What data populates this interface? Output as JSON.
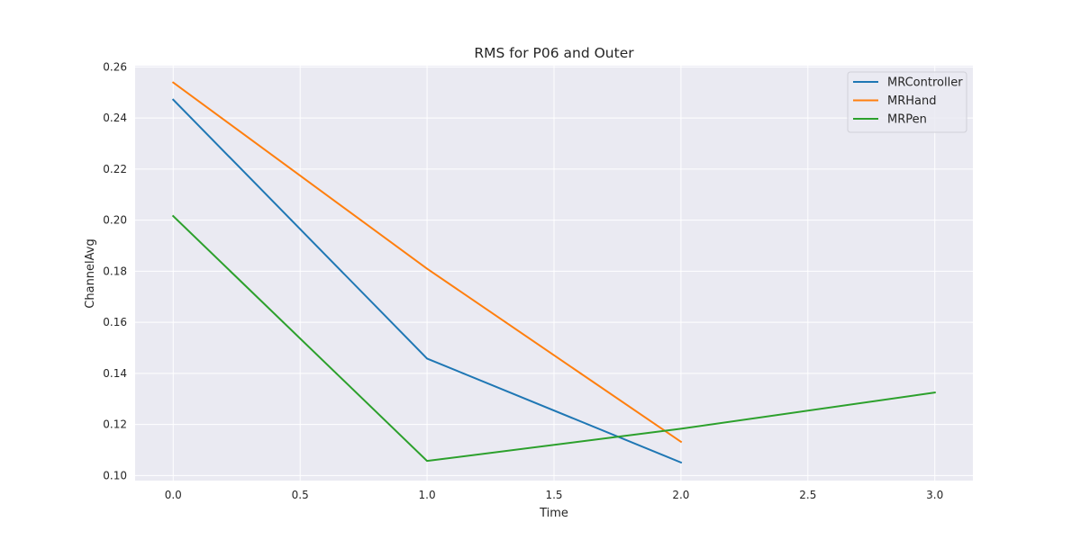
{
  "chart_data": {
    "type": "line",
    "title": "RMS for P06 and Outer",
    "xlabel": "Time",
    "ylabel": "ChannelAvg",
    "xlim": [
      -0.15,
      3.15
    ],
    "ylim": [
      0.098,
      0.2605
    ],
    "xticks": [
      0.0,
      0.5,
      1.0,
      1.5,
      2.0,
      2.5,
      3.0
    ],
    "xtick_labels": [
      "0.0",
      "0.5",
      "1.0",
      "1.5",
      "2.0",
      "2.5",
      "3.0"
    ],
    "yticks": [
      0.1,
      0.12,
      0.14,
      0.16,
      0.18,
      0.2,
      0.22,
      0.24,
      0.26
    ],
    "ytick_labels": [
      "0.10",
      "0.12",
      "0.14",
      "0.16",
      "0.18",
      "0.20",
      "0.22",
      "0.24",
      "0.26"
    ],
    "grid": true,
    "legend_position": "top-right",
    "background": "#eaeaf2",
    "grid_color": "#ffffff",
    "series": [
      {
        "name": "MRController",
        "color": "#1f77b4",
        "x": [
          0,
          1,
          2
        ],
        "y": [
          0.2472,
          0.1458,
          0.1051
        ]
      },
      {
        "name": "MRHand",
        "color": "#ff7f0e",
        "x": [
          0,
          1,
          2
        ],
        "y": [
          0.2539,
          0.181,
          0.1132
        ]
      },
      {
        "name": "MRPen",
        "color": "#2ca02c",
        "x": [
          0,
          1,
          2,
          3
        ],
        "y": [
          0.2016,
          0.1057,
          0.1183,
          0.1325
        ]
      }
    ]
  }
}
